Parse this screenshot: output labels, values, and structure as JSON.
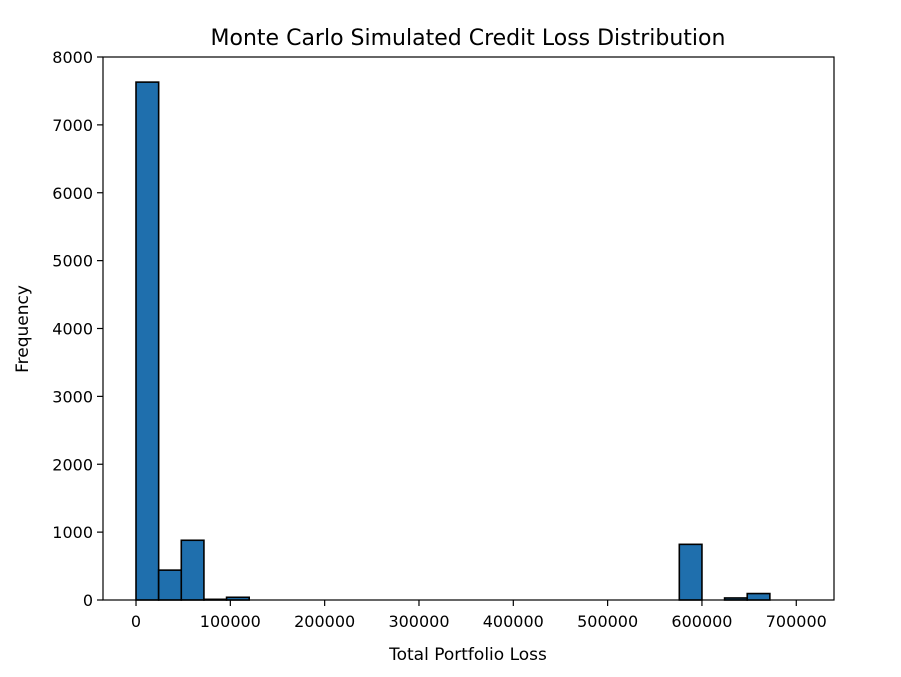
{
  "chart_data": {
    "type": "bar",
    "title": "Monte Carlo Simulated Credit Loss Distribution",
    "xlabel": "Total Portfolio Loss",
    "ylabel": "Frequency",
    "xlim": [
      -35000,
      740000
    ],
    "ylim": [
      0,
      8000
    ],
    "grid": false,
    "bar_color": "#1f6fad",
    "edge_color": "#000000",
    "xticks": [
      0,
      100000,
      200000,
      300000,
      400000,
      500000,
      600000,
      700000
    ],
    "xtick_labels": [
      "0",
      "100000",
      "200000",
      "300000",
      "400000",
      "500000",
      "600000",
      "700000"
    ],
    "yticks": [
      0,
      1000,
      2000,
      3000,
      4000,
      5000,
      6000,
      7000,
      8000
    ],
    "ytick_labels": [
      "0",
      "1000",
      "2000",
      "3000",
      "4000",
      "5000",
      "6000",
      "7000",
      "8000"
    ],
    "bins": [
      {
        "x0": 0,
        "x1": 24000,
        "count": 7630
      },
      {
        "x0": 24000,
        "x1": 48000,
        "count": 440
      },
      {
        "x0": 48000,
        "x1": 72000,
        "count": 880
      },
      {
        "x0": 72000,
        "x1": 96000,
        "count": 10
      },
      {
        "x0": 96000,
        "x1": 120000,
        "count": 40
      },
      {
        "x0": 120000,
        "x1": 144000,
        "count": 0
      },
      {
        "x0": 144000,
        "x1": 168000,
        "count": 0
      },
      {
        "x0": 168000,
        "x1": 192000,
        "count": 0
      },
      {
        "x0": 192000,
        "x1": 216000,
        "count": 0
      },
      {
        "x0": 216000,
        "x1": 240000,
        "count": 0
      },
      {
        "x0": 240000,
        "x1": 264000,
        "count": 0
      },
      {
        "x0": 264000,
        "x1": 288000,
        "count": 0
      },
      {
        "x0": 288000,
        "x1": 312000,
        "count": 0
      },
      {
        "x0": 312000,
        "x1": 336000,
        "count": 0
      },
      {
        "x0": 336000,
        "x1": 360000,
        "count": 0
      },
      {
        "x0": 360000,
        "x1": 384000,
        "count": 0
      },
      {
        "x0": 384000,
        "x1": 408000,
        "count": 0
      },
      {
        "x0": 408000,
        "x1": 432000,
        "count": 0
      },
      {
        "x0": 432000,
        "x1": 456000,
        "count": 0
      },
      {
        "x0": 456000,
        "x1": 480000,
        "count": 0
      },
      {
        "x0": 480000,
        "x1": 504000,
        "count": 0
      },
      {
        "x0": 504000,
        "x1": 528000,
        "count": 0
      },
      {
        "x0": 528000,
        "x1": 552000,
        "count": 0
      },
      {
        "x0": 552000,
        "x1": 576000,
        "count": 0
      },
      {
        "x0": 576000,
        "x1": 600000,
        "count": 820
      },
      {
        "x0": 600000,
        "x1": 624000,
        "count": 0
      },
      {
        "x0": 624000,
        "x1": 648000,
        "count": 30
      },
      {
        "x0": 648000,
        "x1": 672000,
        "count": 95
      },
      {
        "x0": 672000,
        "x1": 696000,
        "count": 0
      }
    ]
  }
}
